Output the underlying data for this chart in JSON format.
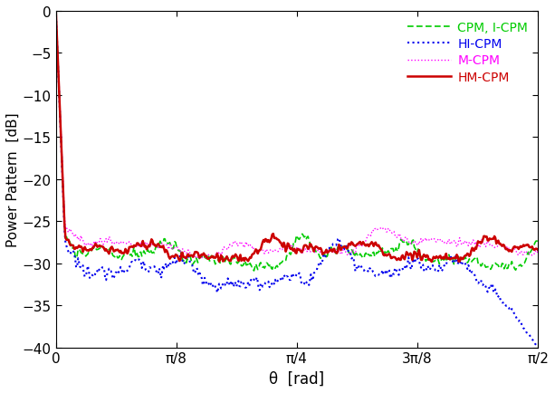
{
  "title": "",
  "xlabel": "θ  [rad]",
  "ylabel": "Power Pattern  [dB]",
  "ylim": [
    -40,
    0
  ],
  "xlim": [
    0,
    1.5707963267948966
  ],
  "yticks": [
    0,
    -5,
    -10,
    -15,
    -20,
    -25,
    -30,
    -35,
    -40
  ],
  "xtick_positions": [
    0,
    0.3926990816987242,
    0.7853981633974483,
    1.1780972450961724,
    1.5707963267948966
  ],
  "xtick_labels": [
    "0",
    "π/8",
    "π/4",
    "3π/8",
    "π/2"
  ],
  "legend_entries": [
    "CPM, I-CPM",
    "HI-CPM",
    "M-CPM",
    "HM-CPM"
  ],
  "legend_colors": [
    "#00cc00",
    "#0000ee",
    "#ff00ff",
    "#cc0000"
  ],
  "bg_color": "#ffffff"
}
